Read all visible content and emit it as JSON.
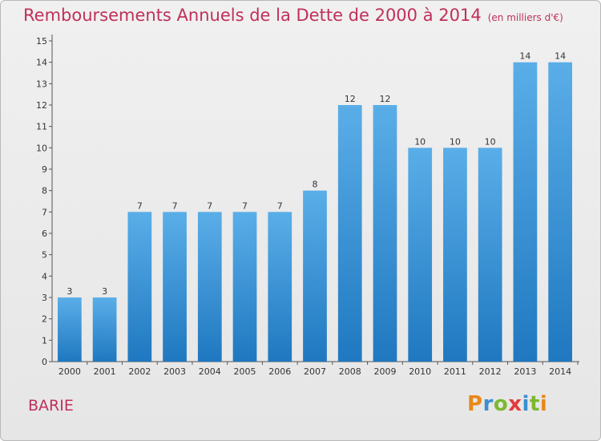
{
  "title": "Remboursements Annuels de la Dette de 2000 à 2014",
  "unit": "(en milliers d'€)",
  "commune": "BARIE",
  "brand": {
    "letters": [
      "P",
      "r",
      "o",
      "x",
      "i",
      "t",
      "i"
    ],
    "colors": [
      "#e8891a",
      "#3a8fd0",
      "#7cb82f",
      "#e23b3b",
      "#3a8fd0",
      "#7cb82f",
      "#e8891a"
    ]
  },
  "colors": {
    "bar_top": "#5aaee8",
    "bar_bottom": "#1f78c0",
    "accent": "#c0305a"
  },
  "chart_data": {
    "type": "bar",
    "categories": [
      "2000",
      "2001",
      "2002",
      "2003",
      "2004",
      "2005",
      "2006",
      "2007",
      "2008",
      "2009",
      "2010",
      "2011",
      "2012",
      "2013",
      "2014"
    ],
    "values": [
      3,
      3,
      7,
      7,
      7,
      7,
      7,
      8,
      12,
      12,
      10,
      10,
      10,
      14,
      14
    ],
    "ylim": [
      0,
      15
    ],
    "yticks": [
      0,
      1,
      2,
      3,
      4,
      5,
      6,
      7,
      8,
      9,
      10,
      11,
      12,
      13,
      14,
      15
    ],
    "grid": false,
    "title": "Remboursements Annuels de la Dette de 2000 à 2014",
    "xlabel": "",
    "ylabel": ""
  }
}
